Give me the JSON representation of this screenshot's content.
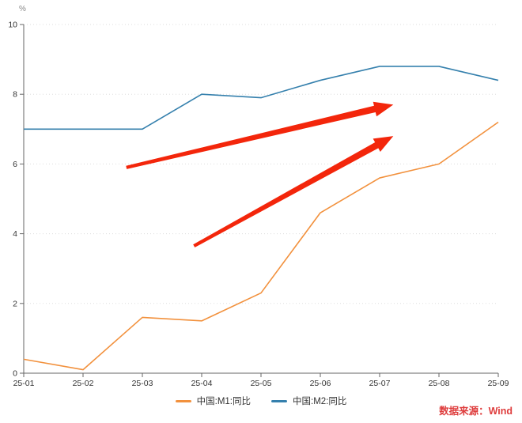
{
  "chart_data": {
    "type": "line",
    "title": "",
    "xlabel": "",
    "ylabel": "%",
    "ylim": [
      0,
      10
    ],
    "yticks": [
      0,
      2,
      4,
      6,
      8,
      10
    ],
    "grid": "horizontal-dotted",
    "legend_position": "bottom-center",
    "categories": [
      "25-01",
      "25-02",
      "25-03",
      "25-04",
      "25-05",
      "25-06",
      "25-07",
      "25-08",
      "25-09"
    ],
    "series": [
      {
        "name": "中国:M1:同比",
        "color": "#F2913D",
        "values": [
          0.4,
          0.1,
          1.6,
          1.5,
          2.3,
          4.6,
          5.6,
          6.0,
          7.2
        ]
      },
      {
        "name": "中国:M2:同比",
        "color": "#3580AD",
        "values": [
          7.0,
          7.0,
          7.0,
          8.0,
          7.9,
          8.4,
          8.8,
          8.8,
          8.4
        ]
      }
    ],
    "annotations": {
      "arrow_color": "#F3260B",
      "arrows": [
        {
          "x1": 1.73,
          "y1": 5.9,
          "x2": 6.23,
          "y2": 7.7
        },
        {
          "x1": 2.87,
          "y1": 3.65,
          "x2": 6.23,
          "y2": 6.8
        }
      ]
    },
    "axis_color": "#666666",
    "grid_color": "#dddddd",
    "tick_label_color": "#333333"
  },
  "source_note": {
    "text": "数据来源：Wind",
    "color": "#DE3C3C"
  }
}
